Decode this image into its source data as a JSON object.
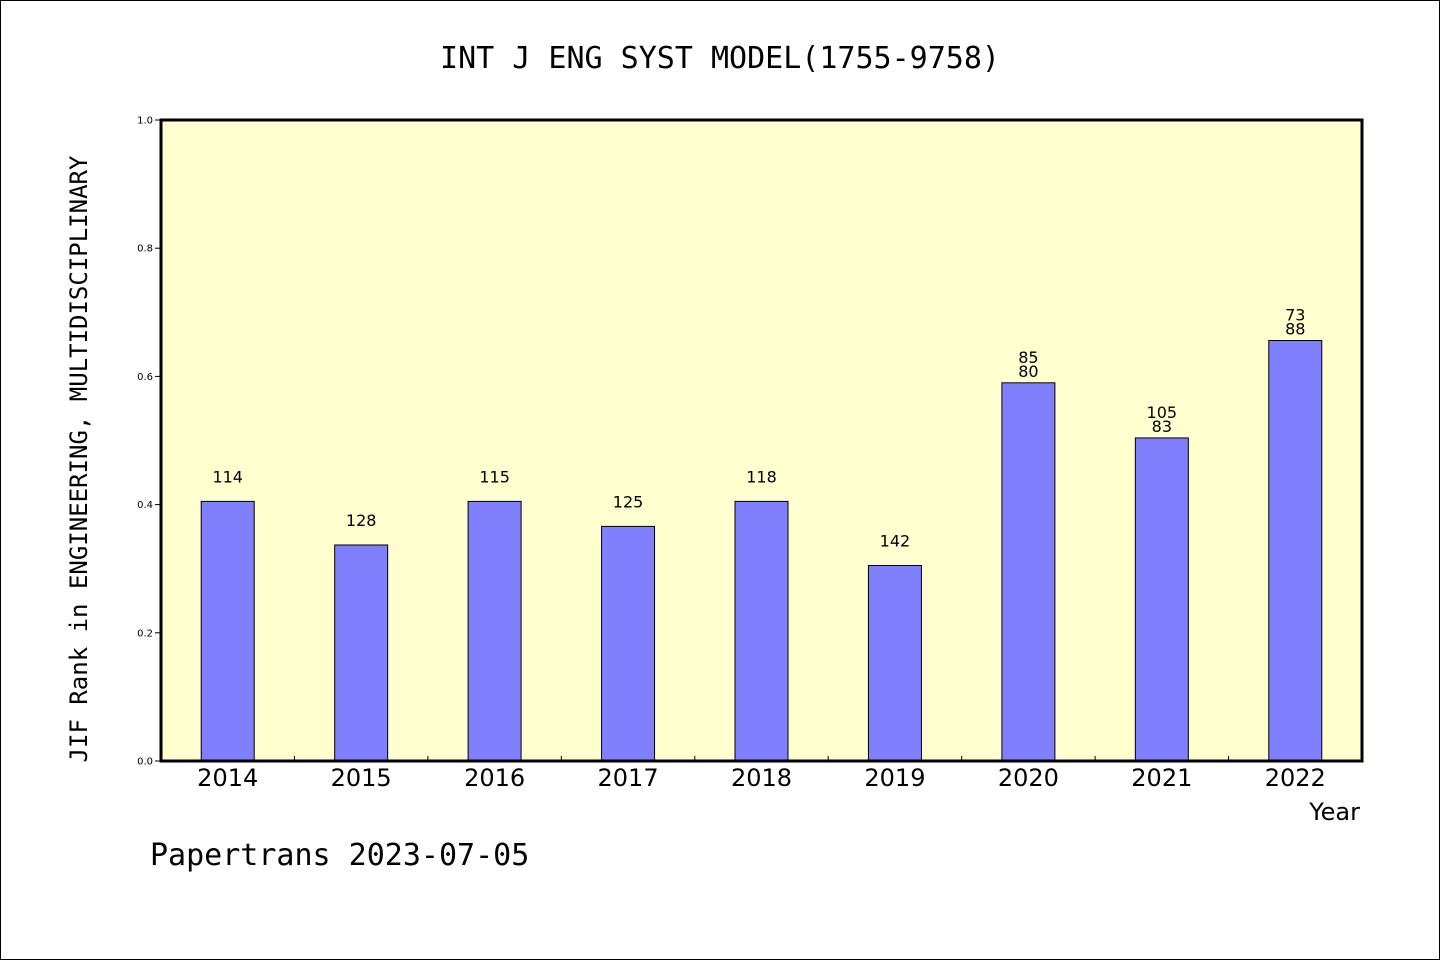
{
  "chart_data": {
    "type": "bar",
    "title": "INT J ENG SYST MODEL(1755-9758)",
    "xlabel": "Year",
    "ylabel": "JIF Rank in ENGINEERING, MULTIDISCIPLINARY",
    "ylim": [
      0,
      1.0
    ],
    "yticks": [
      "0.0",
      "0.2",
      "0.4",
      "0.6",
      "0.8",
      "1.0"
    ],
    "categories": [
      "2014",
      "2015",
      "2016",
      "2017",
      "2018",
      "2019",
      "2020",
      "2021",
      "2022"
    ],
    "values": [
      0.405,
      0.337,
      0.405,
      0.366,
      0.405,
      0.305,
      0.59,
      0.504,
      0.656
    ],
    "bar_labels": [
      [
        "114"
      ],
      [
        "128"
      ],
      [
        "115"
      ],
      [
        "125"
      ],
      [
        "118"
      ],
      [
        "142"
      ],
      [
        "85",
        "80"
      ],
      [
        "105",
        "83"
      ],
      [
        "73",
        "88"
      ]
    ],
    "grid": false,
    "colors": {
      "bar": "#8080ff",
      "plot_bg": "#ffffd0"
    }
  },
  "footer": "Papertrans 2023-07-05"
}
